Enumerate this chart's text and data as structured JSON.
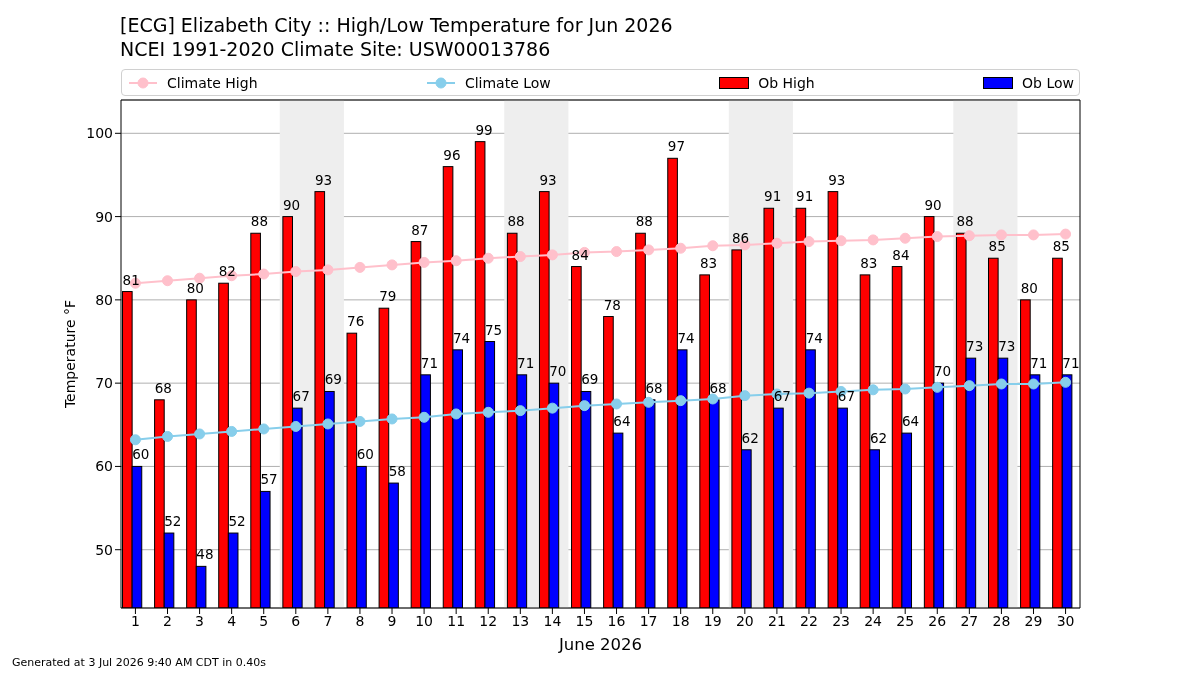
{
  "chart_data": {
    "type": "bar",
    "title": "[ECG] Elizabeth City :: High/Low Temperature for Jun 2026",
    "subtitle": "NCEI 1991-2020 Climate Site: USW00013786",
    "xlabel": "June 2026",
    "ylabel": "Temperature °F",
    "annotations": [
      "Generated at 3 Jul 2026 9:40 AM CDT in 0.40s"
    ],
    "x": [
      1,
      2,
      3,
      4,
      5,
      6,
      7,
      8,
      9,
      10,
      11,
      12,
      13,
      14,
      15,
      16,
      17,
      18,
      19,
      20,
      21,
      22,
      23,
      24,
      25,
      26,
      27,
      28,
      29,
      30
    ],
    "xlim": [
      0.55,
      30.45
    ],
    "xticks": [
      1,
      2,
      3,
      4,
      5,
      6,
      7,
      8,
      9,
      10,
      11,
      12,
      13,
      14,
      15,
      16,
      17,
      18,
      19,
      20,
      21,
      22,
      23,
      24,
      25,
      26,
      27,
      28,
      29,
      30
    ],
    "ylim": [
      43,
      104
    ],
    "yticks": [
      50,
      60,
      70,
      80,
      90,
      100
    ],
    "grid": "y",
    "legend": "top",
    "bands": [
      {
        "axis": "x",
        "from": 5.5,
        "to": 7.5,
        "color": "#eeeeee"
      },
      {
        "axis": "x",
        "from": 12.5,
        "to": 14.5,
        "color": "#eeeeee"
      },
      {
        "axis": "x",
        "from": 19.5,
        "to": 21.5,
        "color": "#eeeeee"
      },
      {
        "axis": "x",
        "from": 26.5,
        "to": 28.5,
        "color": "#eeeeee"
      }
    ],
    "series": [
      {
        "name": "Climate High",
        "type": "line",
        "marker": "circle",
        "color": "#ffc0cb",
        "values": [
          82.0,
          82.3,
          82.6,
          82.9,
          83.1,
          83.4,
          83.6,
          83.9,
          84.2,
          84.5,
          84.7,
          85.0,
          85.2,
          85.4,
          85.7,
          85.8,
          86.0,
          86.2,
          86.5,
          86.6,
          86.8,
          87.0,
          87.1,
          87.2,
          87.4,
          87.6,
          87.7,
          87.8,
          87.8,
          87.9
        ]
      },
      {
        "name": "Climate Low",
        "type": "line",
        "marker": "circle",
        "color": "#87ceeb",
        "values": [
          63.2,
          63.6,
          63.9,
          64.2,
          64.5,
          64.8,
          65.1,
          65.4,
          65.7,
          65.9,
          66.3,
          66.5,
          66.7,
          67.0,
          67.3,
          67.5,
          67.7,
          67.9,
          68.1,
          68.5,
          68.7,
          68.8,
          69.0,
          69.2,
          69.3,
          69.5,
          69.7,
          69.9,
          69.9,
          70.1
        ]
      },
      {
        "name": "Ob High",
        "color": "#ff0000",
        "values": [
          81,
          68,
          80,
          82,
          88,
          90,
          93,
          76,
          79,
          87,
          96,
          99,
          88,
          93,
          84,
          78,
          88,
          97,
          83,
          86,
          91,
          91,
          93,
          83,
          84,
          90,
          88,
          85,
          80,
          85
        ],
        "value_labels": [
          "81",
          "68",
          "80",
          "82",
          "88",
          "90",
          "93",
          "76",
          "79",
          "87",
          "96",
          "99",
          "88",
          "93",
          "84",
          "78",
          "88",
          "97",
          "83",
          "86",
          "91",
          "91",
          "93",
          "83",
          "84",
          "90",
          "88",
          "85",
          "80",
          "85"
        ]
      },
      {
        "name": "Ob Low",
        "color": "#0000ff",
        "values": [
          60,
          52,
          48,
          52,
          57,
          67,
          69,
          60,
          58,
          71,
          74,
          75,
          71,
          70,
          69,
          64,
          68,
          74,
          68,
          62,
          67,
          74,
          67,
          62,
          64,
          70,
          73,
          73,
          71,
          71
        ],
        "value_labels": [
          "60",
          "52",
          "48",
          "52",
          "57",
          "67",
          "69",
          "60",
          "58",
          "71",
          "74",
          "75",
          "71",
          "70",
          "69",
          "64",
          "68",
          "74",
          "68",
          "62",
          "67",
          "74",
          "67",
          "62",
          "64",
          "70",
          "73",
          "73",
          "71",
          "71"
        ]
      }
    ]
  }
}
